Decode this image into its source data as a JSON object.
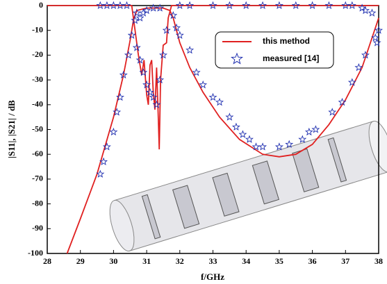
{
  "chart_data": {
    "type": "line",
    "xlabel": "f/GHz",
    "ylabel": "|S11|, |S21| / dB",
    "xlim": [
      28,
      38
    ],
    "xticks": [
      28,
      29,
      30,
      31,
      32,
      33,
      34,
      35,
      36,
      37,
      38
    ],
    "ylim": [
      -100,
      0
    ],
    "yticks": [
      0,
      -10,
      -20,
      -30,
      -40,
      -50,
      -60,
      -70,
      -80,
      -90,
      -100
    ],
    "legend": "upper right",
    "series": [
      {
        "name": "this method",
        "color": "#e02020",
        "style": "line",
        "x": [
          28.6,
          29,
          29.5,
          30,
          30.3,
          30.5,
          30.6,
          30.7,
          31,
          31.5,
          31.7,
          31.8,
          32,
          32.3,
          32.7,
          33.2,
          33.8,
          34.5,
          35,
          35.5,
          36,
          36.5,
          37,
          37.5,
          37.8,
          38,
          null,
          28,
          30.55,
          30.65,
          30.75,
          30.85,
          30.92,
          31,
          31.05,
          31.1,
          31.15,
          31.2,
          31.25,
          31.3,
          31.35,
          31.38,
          31.42,
          31.5,
          31.6,
          31.65,
          31.75,
          38
        ],
        "values": [
          -100,
          -86,
          -68,
          -45,
          -28,
          -14,
          -6,
          -2,
          -1,
          -1,
          -2,
          -5,
          -15,
          -25,
          -35,
          -45,
          -54,
          -60,
          -61,
          -60,
          -56,
          -48,
          -38,
          -25,
          -13,
          -5,
          null,
          0,
          0,
          -10,
          -20,
          -28,
          -22,
          -36,
          -40,
          -24,
          -22,
          -35,
          -42,
          -25,
          -45,
          -58,
          -30,
          -16,
          -15,
          -5,
          0,
          0
        ]
      },
      {
        "name": "measured [14]",
        "color": "#2030b0",
        "style": "star",
        "x": [
          29.6,
          29.7,
          29.8,
          30,
          30.1,
          30.2,
          30.3,
          30.45,
          30.55,
          30.65,
          30.7,
          29.6,
          29.8,
          30,
          30.2,
          30.4,
          30.7,
          30.8,
          30.9,
          31,
          31.1,
          31.2,
          31.3,
          31.4,
          31.5,
          31.6,
          30.8,
          30.9,
          31,
          31.2,
          31.4,
          32,
          32.3,
          33,
          33.5,
          34,
          34.5,
          35,
          35.5,
          36,
          36.5,
          37,
          37.2,
          37.5,
          37.6,
          37.8,
          31.8,
          31.9,
          32,
          32.3,
          32.5,
          32.7,
          33,
          33.2,
          33.5,
          33.7,
          33.9,
          34.1,
          34.3,
          34.5,
          35,
          35.3,
          35.7,
          35.9,
          36.1,
          36.6,
          36.9,
          37.2,
          37.4,
          37.6,
          37.9,
          37.95,
          38
        ],
        "values": [
          -68,
          -63,
          -57,
          -51,
          -43,
          -37,
          -28,
          -20,
          -12,
          -6,
          -3,
          0,
          0,
          0,
          0,
          0,
          -17,
          -22,
          -27,
          -32,
          -35,
          -37,
          -40,
          -30,
          -20,
          -10,
          -5,
          -3,
          -2,
          -1,
          -1,
          0,
          0,
          0,
          0,
          0,
          0,
          0,
          0,
          0,
          0,
          0,
          0,
          -1,
          -2,
          -3,
          -4,
          -9,
          -12,
          -18,
          -27,
          -32,
          -37,
          -39,
          -45,
          -49,
          -52,
          -54,
          -57,
          -57,
          -57,
          -56,
          -54,
          -51,
          -50,
          -43,
          -39,
          -31,
          -25,
          -20,
          -13,
          -15,
          -10
        ]
      }
    ]
  }
}
